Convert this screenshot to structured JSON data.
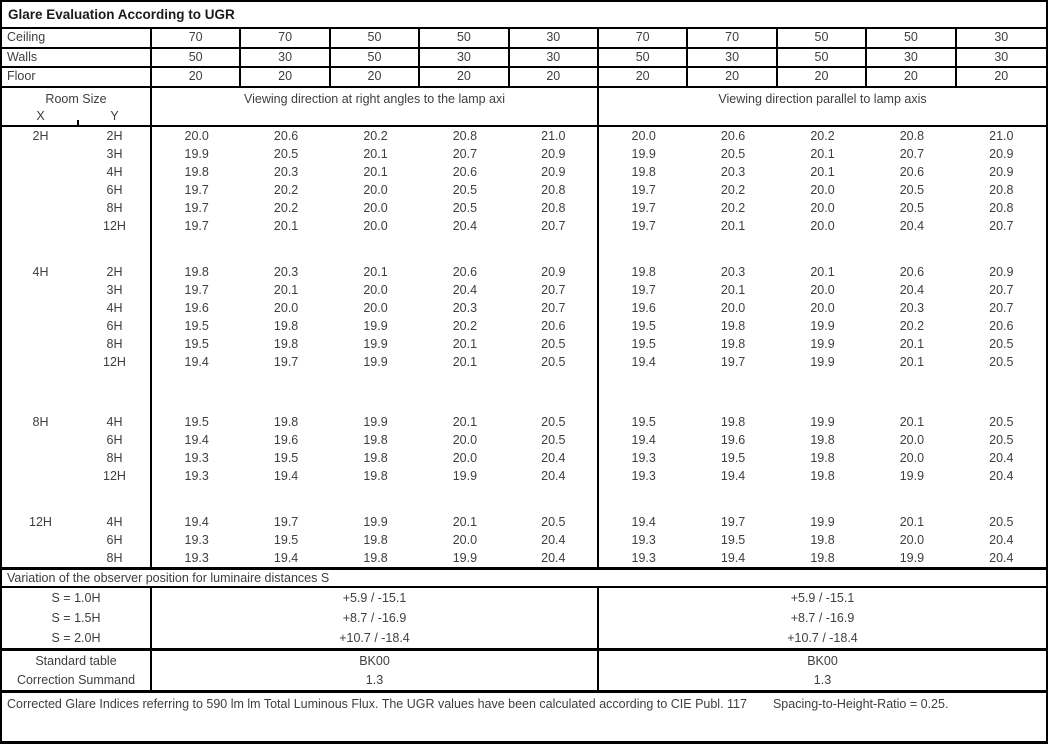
{
  "colors": {
    "border": "#000000",
    "text": "#3e3e3e",
    "title_text": "#1b1b1b",
    "background": "#ffffff"
  },
  "title": "Glare Evaluation According to UGR",
  "surfaces": {
    "rows": [
      {
        "label": "Ceiling",
        "values": [
          "70",
          "70",
          "50",
          "50",
          "30",
          "70",
          "70",
          "50",
          "50",
          "30"
        ]
      },
      {
        "label": "Walls",
        "values": [
          "50",
          "30",
          "50",
          "30",
          "30",
          "50",
          "30",
          "50",
          "30",
          "30"
        ]
      },
      {
        "label": "Floor",
        "values": [
          "20",
          "20",
          "20",
          "20",
          "20",
          "20",
          "20",
          "20",
          "20",
          "20"
        ]
      }
    ]
  },
  "header": {
    "room_size_label": "Room Size",
    "x_label": "X",
    "y_label": "Y",
    "left_heading": "Viewing direction at right angles to the lamp axi",
    "right_heading": "Viewing direction parallel to lamp axis"
  },
  "ugr_blocks": [
    {
      "x": "2H",
      "rows": [
        {
          "y": "2H",
          "values": [
            "20.0",
            "20.6",
            "20.2",
            "20.8",
            "21.0"
          ]
        },
        {
          "y": "3H",
          "values": [
            "19.9",
            "20.5",
            "20.1",
            "20.7",
            "20.9"
          ]
        },
        {
          "y": "4H",
          "values": [
            "19.8",
            "20.3",
            "20.1",
            "20.6",
            "20.9"
          ]
        },
        {
          "y": "6H",
          "values": [
            "19.7",
            "20.2",
            "20.0",
            "20.5",
            "20.8"
          ]
        },
        {
          "y": "8H",
          "values": [
            "19.7",
            "20.2",
            "20.0",
            "20.5",
            "20.8"
          ]
        },
        {
          "y": "12H",
          "values": [
            "19.7",
            "20.1",
            "20.0",
            "20.4",
            "20.7"
          ]
        }
      ]
    },
    {
      "x": "4H",
      "rows": [
        {
          "y": "2H",
          "values": [
            "19.8",
            "20.3",
            "20.1",
            "20.6",
            "20.9"
          ]
        },
        {
          "y": "3H",
          "values": [
            "19.7",
            "20.1",
            "20.0",
            "20.4",
            "20.7"
          ]
        },
        {
          "y": "4H",
          "values": [
            "19.6",
            "20.0",
            "20.0",
            "20.3",
            "20.7"
          ]
        },
        {
          "y": "6H",
          "values": [
            "19.5",
            "19.8",
            "19.9",
            "20.2",
            "20.6"
          ]
        },
        {
          "y": "8H",
          "values": [
            "19.5",
            "19.8",
            "19.9",
            "20.1",
            "20.5"
          ]
        },
        {
          "y": "12H",
          "values": [
            "19.4",
            "19.7",
            "19.9",
            "20.1",
            "20.5"
          ]
        }
      ]
    },
    {
      "x": "8H",
      "rows": [
        {
          "y": "4H",
          "values": [
            "19.5",
            "19.8",
            "19.9",
            "20.1",
            "20.5"
          ]
        },
        {
          "y": "6H",
          "values": [
            "19.4",
            "19.6",
            "19.8",
            "20.0",
            "20.5"
          ]
        },
        {
          "y": "8H",
          "values": [
            "19.3",
            "19.5",
            "19.8",
            "20.0",
            "20.4"
          ]
        },
        {
          "y": "12H",
          "values": [
            "19.3",
            "19.4",
            "19.8",
            "19.9",
            "20.4"
          ]
        }
      ]
    },
    {
      "x": "12H",
      "rows": [
        {
          "y": "4H",
          "values": [
            "19.4",
            "19.7",
            "19.9",
            "20.1",
            "20.5"
          ]
        },
        {
          "y": "6H",
          "values": [
            "19.3",
            "19.5",
            "19.8",
            "20.0",
            "20.4"
          ]
        },
        {
          "y": "8H",
          "values": [
            "19.3",
            "19.4",
            "19.8",
            "19.9",
            "20.4"
          ]
        }
      ]
    }
  ],
  "variation": {
    "heading": "Variation of the observer position for luminaire distances S",
    "rows": [
      {
        "label": "S = 1.0H",
        "value": "+5.9 / -15.1"
      },
      {
        "label": "S = 1.5H",
        "value": "+8.7 / -16.9"
      },
      {
        "label": "S = 2.0H",
        "value": "+10.7 / -18.4"
      }
    ]
  },
  "summary": {
    "rows": [
      {
        "label": "Standard table",
        "value": "BK00"
      },
      {
        "label": "Correction Summand",
        "value": "1.3"
      }
    ]
  },
  "footer": {
    "text_main": "Corrected Glare Indices referring to 590 lm lm Total Luminous Flux. The UGR values have been calculated according to CIE Publ. 117",
    "text_ratio": "Spacing-to-Height-Ratio = 0.25."
  }
}
